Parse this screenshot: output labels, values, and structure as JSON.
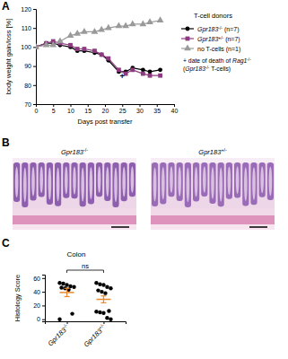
{
  "chart_data": [
    {
      "type": "line",
      "panel": "A",
      "xlabel": "Days post transfer",
      "ylabel": "body weight gain/loss [%]",
      "x": [
        0,
        3,
        5,
        7,
        10,
        12,
        14,
        17,
        19,
        21,
        24,
        26,
        28,
        31,
        33,
        36
      ],
      "series": [
        {
          "name": "Gpr183-/- (n=7)",
          "color": "#000000",
          "marker": "circle",
          "values": [
            100,
            102,
            102,
            101,
            100,
            98,
            98,
            97,
            96,
            93,
            87,
            87,
            89,
            88,
            87,
            88
          ]
        },
        {
          "name": "Gpr183+/- (n=7)",
          "color": "#8e3a80",
          "marker": "square",
          "values": [
            100,
            102,
            103,
            102,
            101,
            99,
            99,
            98,
            96,
            94,
            88,
            86,
            88,
            86,
            85,
            85
          ]
        },
        {
          "name": "no T-cells (n=1)",
          "color": "#9a9a9a",
          "marker": "triangle",
          "values": [
            100,
            101,
            101,
            103,
            106,
            107,
            108,
            108,
            109,
            110,
            111,
            111,
            112,
            112,
            113,
            114
          ]
        }
      ],
      "xlim": [
        0,
        40
      ],
      "xticks": [
        0,
        5,
        10,
        15,
        20,
        25,
        30,
        35,
        40
      ],
      "ylim": [
        70,
        120
      ],
      "yticks": [
        70,
        80,
        90,
        100,
        110,
        120
      ],
      "legend": "right",
      "legend_title": "T-cell donors",
      "notes": [
        "+ date of death of Rag1-/-",
        "(Gpr183-/- T-cells)"
      ],
      "annotations": [
        {
          "text": "+",
          "x": 25,
          "y": 83
        }
      ]
    },
    {
      "type": "dot",
      "panel": "C",
      "title": "Colon",
      "ylabel": "Histology Score",
      "categories": [
        "Gpr183-/-",
        "Gpr183+/-"
      ],
      "groups": [
        {
          "values": [
            53,
            52,
            50,
            48,
            47,
            46,
            45,
            43,
            8,
            0
          ],
          "mean": 39,
          "error": 6
        },
        {
          "values": [
            53,
            51,
            50,
            47,
            45,
            42,
            40,
            38,
            12,
            11,
            10,
            9,
            2,
            0
          ],
          "mean": 29,
          "error": 5
        }
      ],
      "ylim": [
        -3,
        65
      ],
      "yticks": [
        0,
        20,
        40,
        60
      ],
      "color": "#000000",
      "annotations": [
        {
          "text": "ns"
        }
      ]
    }
  ],
  "images": {
    "panel": "B",
    "labels": [
      "Gpr183-/-",
      "Gpr183+/-"
    ]
  }
}
